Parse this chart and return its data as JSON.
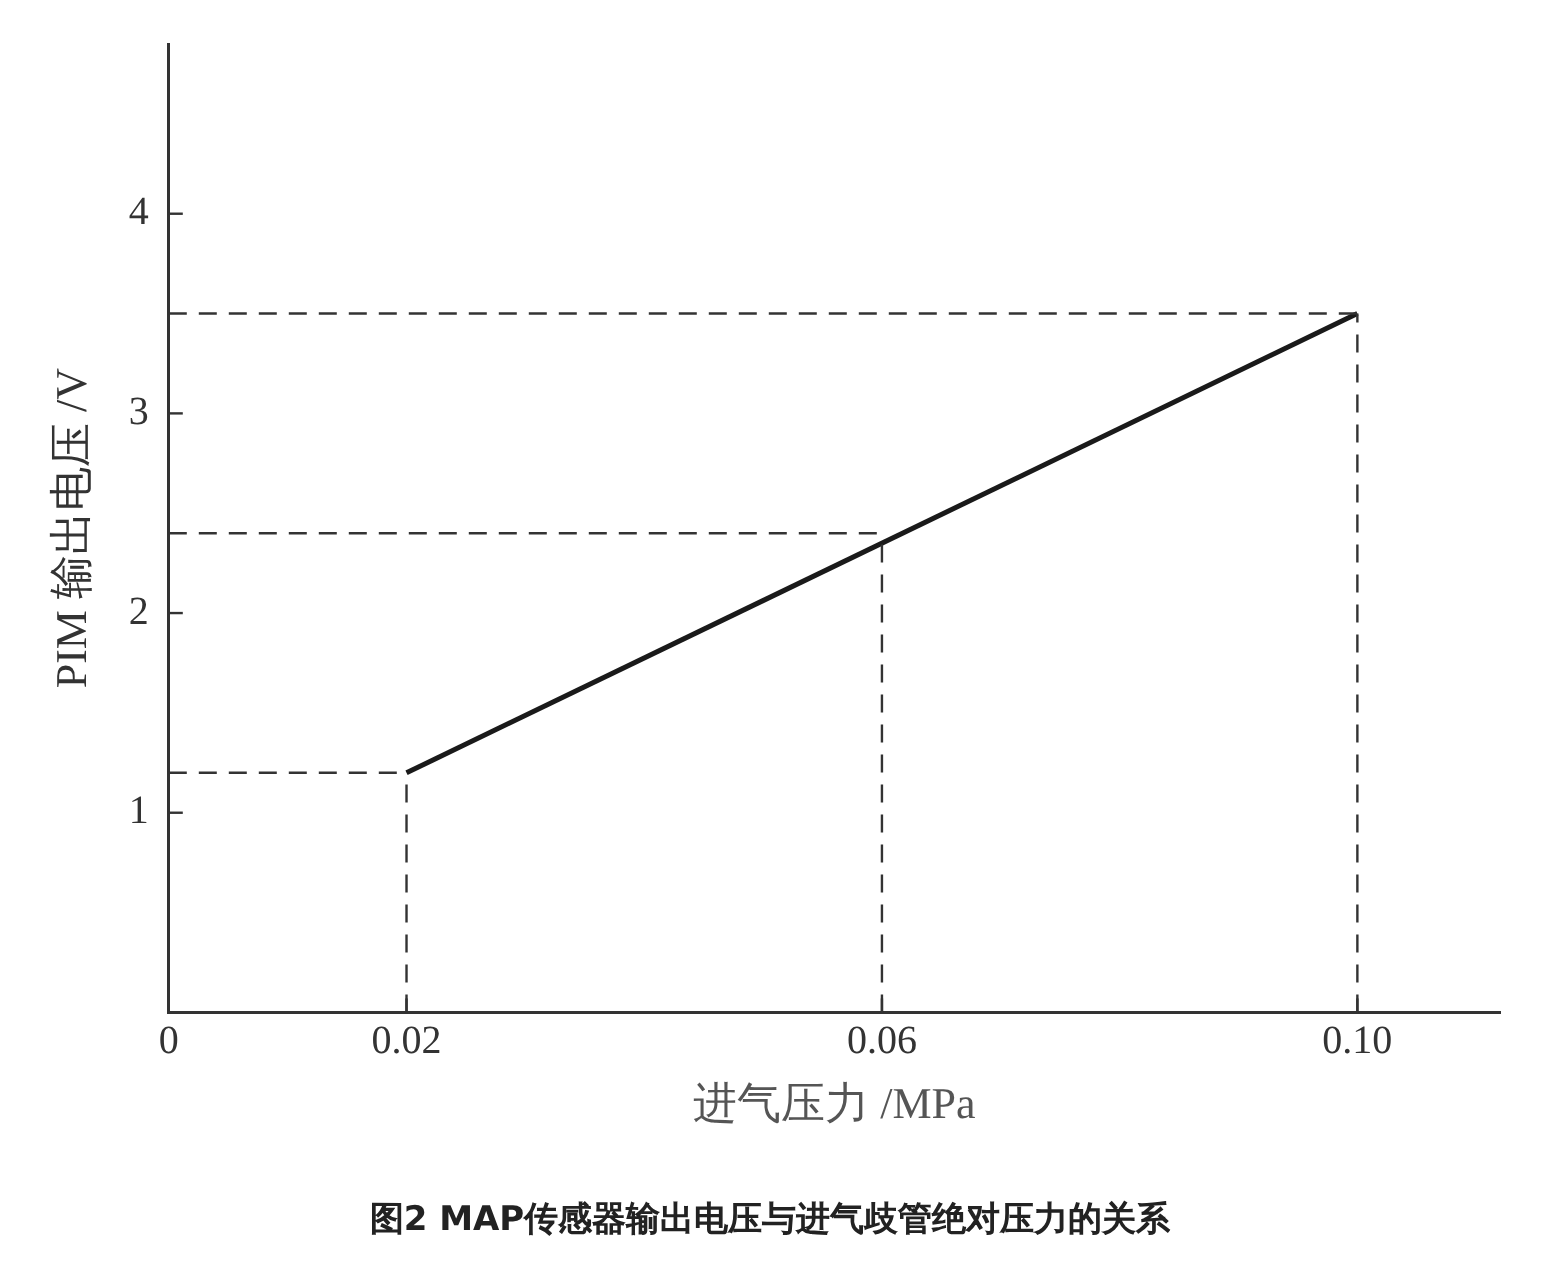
{
  "chart_data": {
    "type": "line",
    "title": "图2 MAP传感器输出电压与进气歧管绝对压力的关系",
    "xlabel": "进气压力 /MPa",
    "ylabel": "PIM 输出电压 /V",
    "x": [
      0.02,
      0.1
    ],
    "series": [
      {
        "color": "#1a1a1a",
        "values": [
          1.2,
          3.5
        ]
      }
    ],
    "xlim": [
      0,
      0.112
    ],
    "ylim": [
      0,
      4.85
    ],
    "xticks": [
      0,
      0.02,
      0.06,
      {
        "value": 0.1,
        "label": "0.10"
      }
    ],
    "yticks": [
      1,
      2,
      3,
      4
    ],
    "ref_lines": [
      {
        "axis": "x",
        "value": 0.02,
        "color": "#333333",
        "line_style": "dashed"
      },
      {
        "axis": "x",
        "value": 0.06,
        "color": "#333333",
        "line_style": "dashed"
      },
      {
        "axis": "x",
        "value": 0.1,
        "color": "#333333",
        "line_style": "dashed"
      },
      {
        "axis": "y",
        "value": 1.2,
        "color": "#333333",
        "line_style": "dashed"
      },
      {
        "axis": "y",
        "value": 2.4,
        "color": "#333333",
        "line_style": "dashed"
      },
      {
        "axis": "y",
        "value": 3.5,
        "color": "#333333",
        "line_style": "dashed"
      }
    ],
    "grid": false,
    "legend": false,
    "marker": "none",
    "line_style": "solid"
  }
}
